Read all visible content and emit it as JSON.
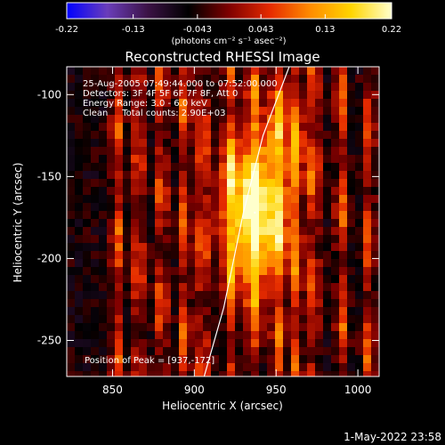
{
  "chart_data": {
    "type": "heatmap",
    "title": "Reconstructed RHESSI Image",
    "xlabel": "Heliocentric X (arcsec)",
    "ylabel": "Heliocentric Y (arcsec)",
    "xlim": [
      822,
      1013
    ],
    "ylim": [
      -272,
      -83
    ],
    "x_ticks": [
      "850",
      "900",
      "950",
      "1000"
    ],
    "x_tick_values": [
      850,
      900,
      950,
      1000
    ],
    "y_ticks": [
      "-100",
      "-150",
      "-200",
      "-250"
    ],
    "y_tick_values": [
      -100,
      -150,
      -200,
      -250
    ],
    "colorbar": {
      "min": -0.22,
      "max": 0.22,
      "ticks": [
        "-0.22",
        "-0.13",
        "-0.043",
        "0.043",
        "0.13",
        "0.22"
      ],
      "tick_values": [
        -0.22,
        -0.13,
        -0.043,
        0.043,
        0.13,
        0.22
      ],
      "label": "(photons cm⁻² s⁻¹ asec⁻²)"
    },
    "annotations": [
      "25-Aug-2005 07:49:44.000 to 07:52:00.000",
      "Detectors: 3F 4F 5F 6F 7F 8F, Att 0",
      "Energy Range: 3.0 - 6.0 keV",
      "Clean     Total counts: 2.90E+03"
    ],
    "peak_label": "Position of Peak = [937,-172]",
    "peak": [
      937,
      -172
    ],
    "limb_points": [
      [
        906,
        -272
      ],
      [
        918,
        -230
      ],
      [
        930,
        -172
      ],
      [
        942,
        -125
      ],
      [
        958,
        -83
      ]
    ],
    "stripe_columns": [
      853,
      866,
      880,
      894,
      905,
      922,
      936,
      951,
      962,
      973,
      990,
      1007
    ],
    "grid": false
  },
  "footer": {
    "date": "1-May-2022 23:58"
  },
  "colors": {
    "background": "#000000",
    "limb": "#ffffff",
    "colormap": [
      "#0000ff",
      "#6a3dba",
      "#3b1245",
      "#000000",
      "#7f0000",
      "#e52a00",
      "#ff8c00",
      "#ffd400",
      "#ffffcc"
    ]
  }
}
